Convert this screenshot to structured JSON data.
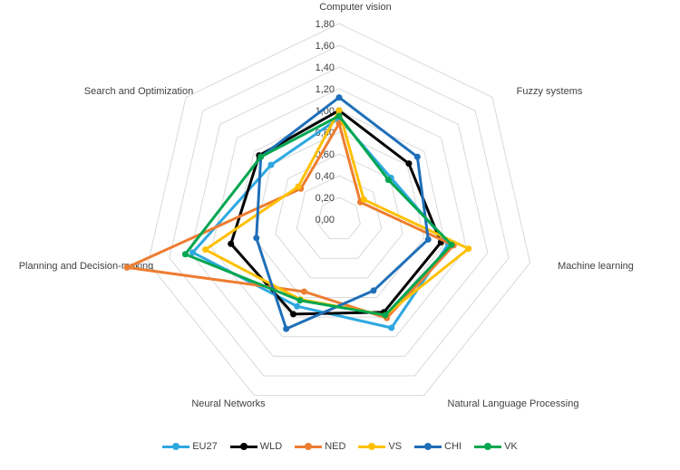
{
  "chart_data": {
    "type": "radar",
    "categories": [
      "Computer vision",
      "Fuzzy systems",
      "Machine learning",
      "Natural Language Processing",
      "Neural Networks",
      "Planning and Decision-making",
      "Search and Optimization"
    ],
    "rlim": [
      0,
      1.8
    ],
    "ticks": [
      "0,00",
      "0,20",
      "0,40",
      "0,60",
      "0,80",
      "1,00",
      "1,20",
      "1,40",
      "1,60",
      "1,80"
    ],
    "grid": true,
    "legend_position": "bottom",
    "series": [
      {
        "name": "EU27",
        "color": "#2EA8E0",
        "values": [
          0.93,
          0.61,
          1.03,
          1.11,
          0.89,
          1.38,
          0.8
        ]
      },
      {
        "name": "WLD",
        "color": "#000000",
        "values": [
          1.0,
          0.82,
          0.96,
          0.95,
          0.97,
          1.02,
          0.94
        ]
      },
      {
        "name": "NED",
        "color": "#ED7D31",
        "values": [
          0.88,
          0.25,
          1.08,
          1.01,
          0.74,
          2.0,
          0.45
        ]
      },
      {
        "name": "VS",
        "color": "#FFC000",
        "values": [
          1.0,
          0.29,
          1.22,
          0.98,
          0.82,
          1.26,
          0.48
        ]
      },
      {
        "name": "CHI",
        "color": "#1F6FB8",
        "values": [
          1.12,
          0.92,
          0.84,
          0.73,
          1.12,
          0.78,
          0.92
        ]
      },
      {
        "name": "VK",
        "color": "#00A650",
        "values": [
          0.95,
          0.58,
          1.06,
          0.98,
          0.83,
          1.45,
          0.92
        ]
      }
    ]
  }
}
